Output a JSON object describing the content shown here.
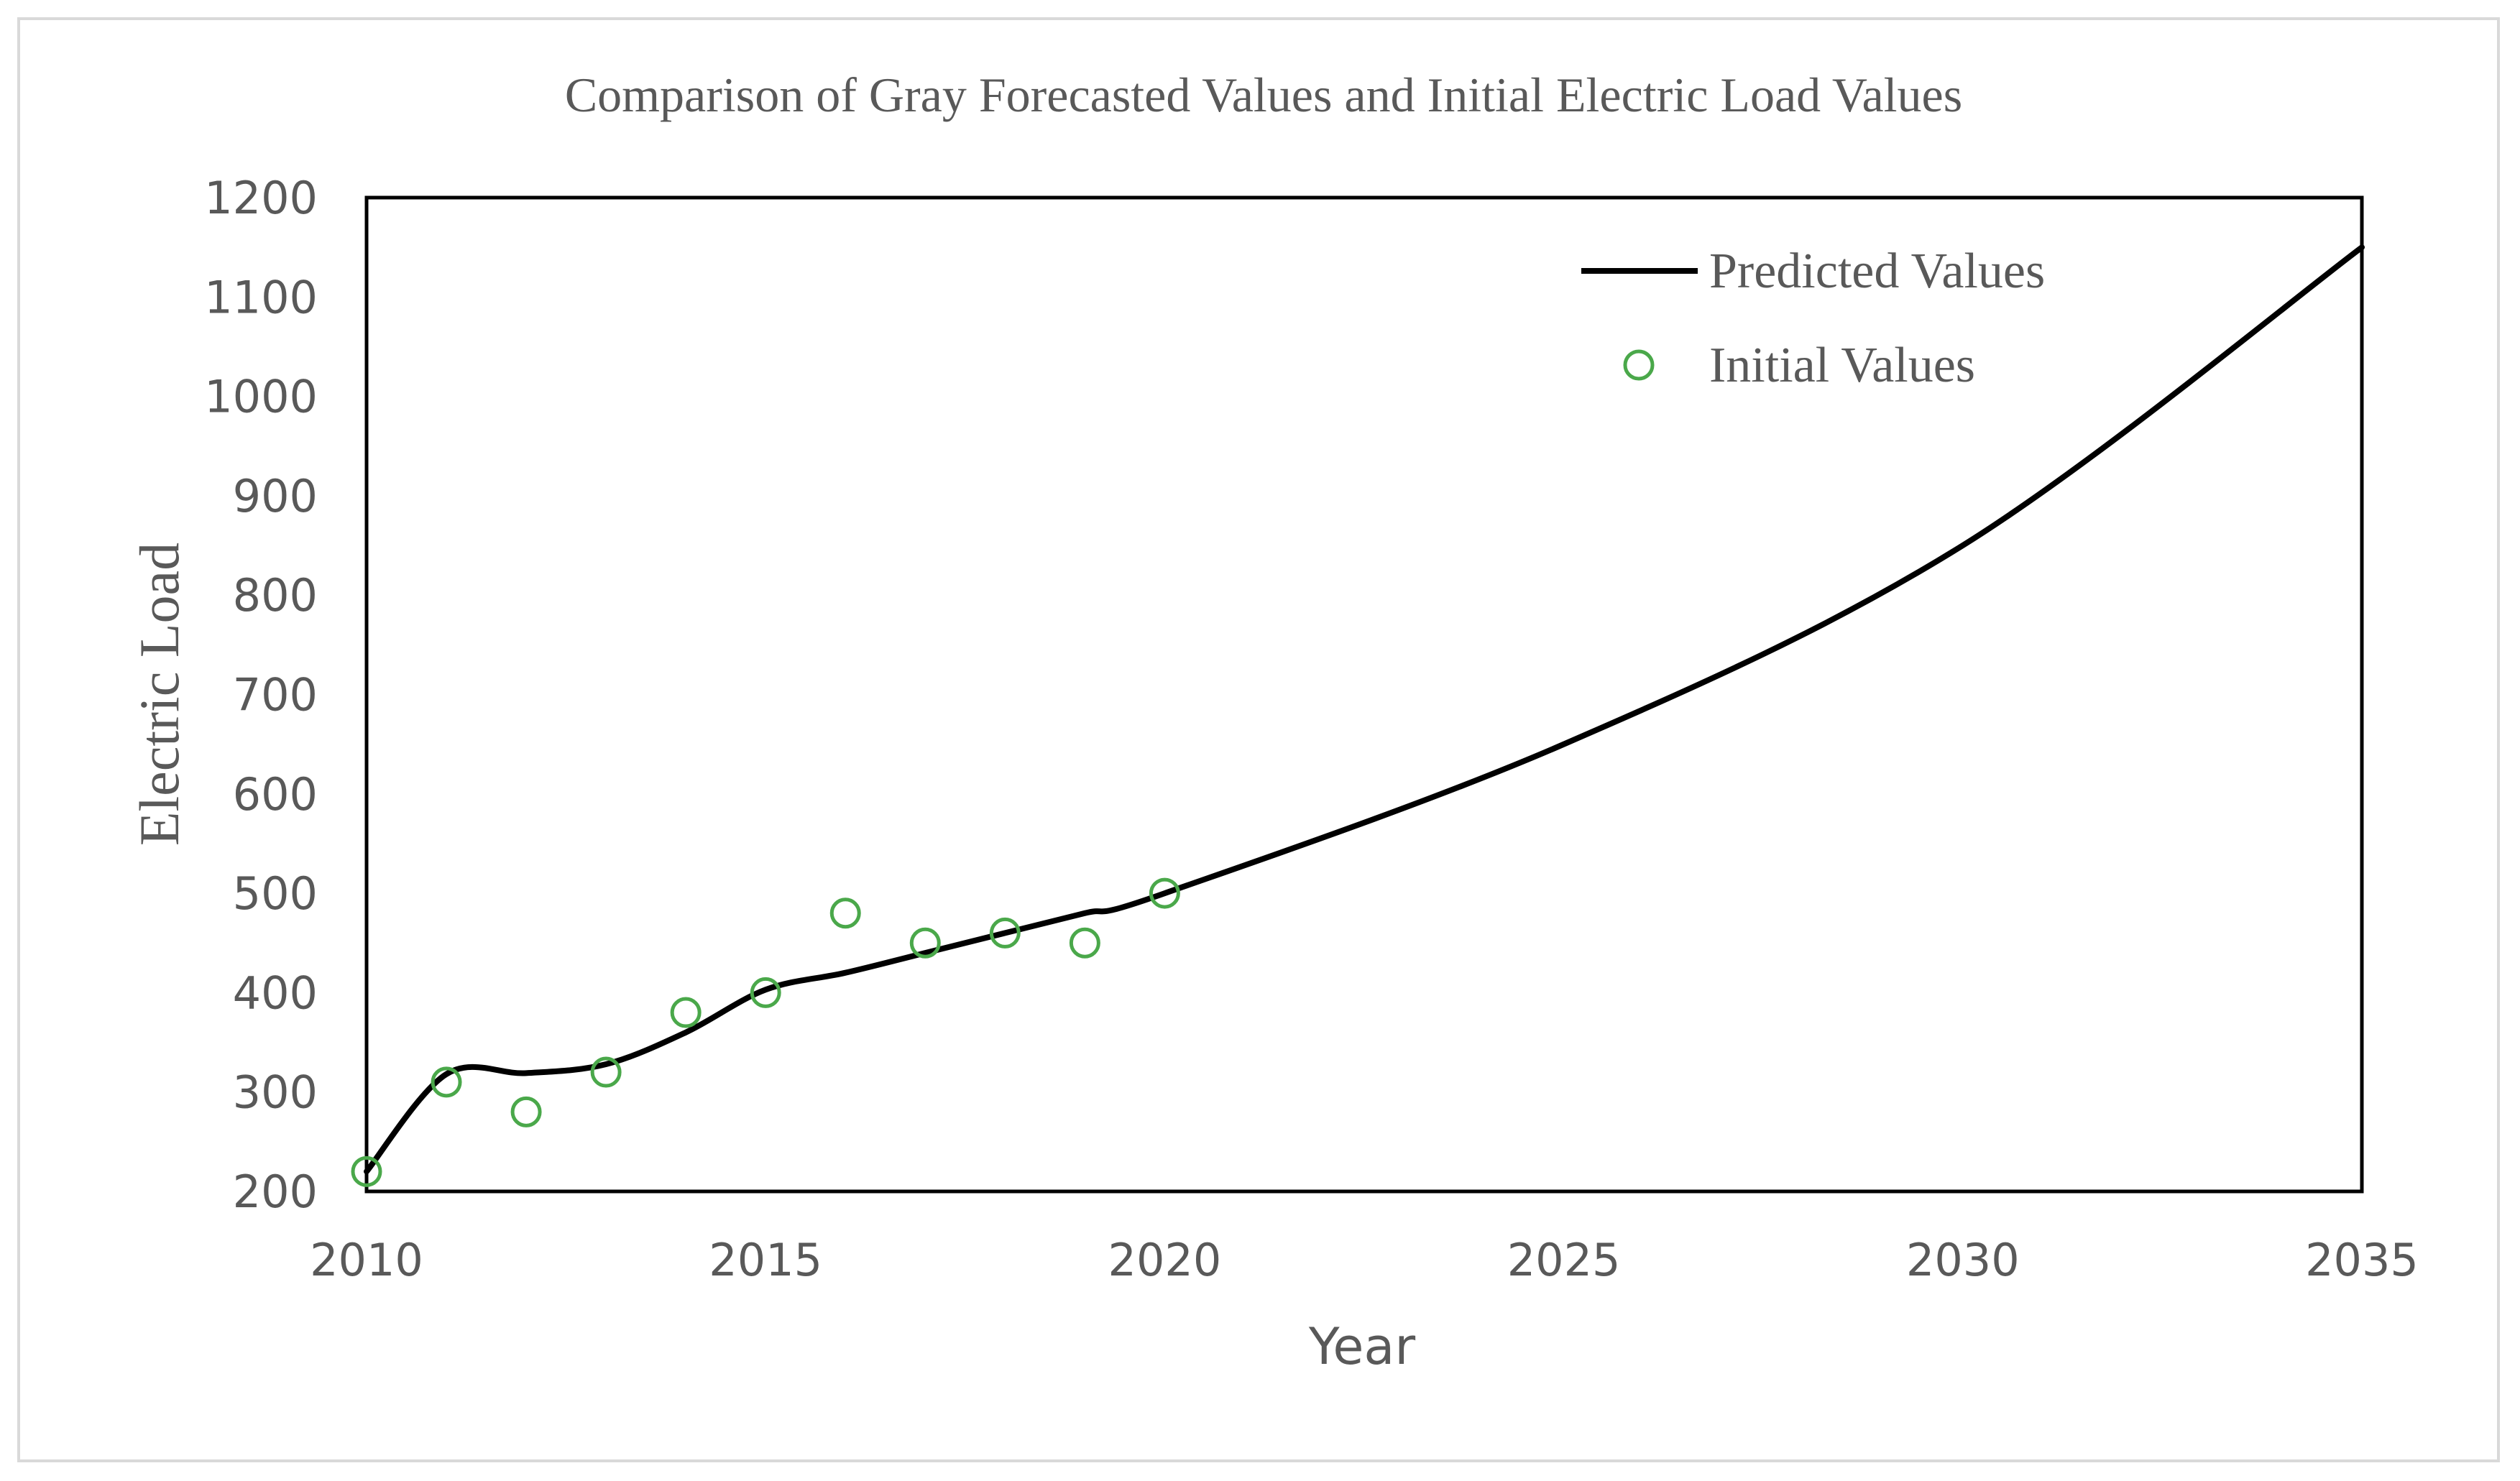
{
  "chart_data": {
    "type": "line",
    "title": "Comparison of Gray Forecasted Values and Initial Electric Load Values",
    "xlabel": "Year",
    "ylabel": "Electric Load",
    "xlim": [
      2010,
      2035
    ],
    "ylim": [
      200,
      1200
    ],
    "xticks": [
      "2010",
      "2015",
      "2020",
      "2025",
      "2030",
      "2035"
    ],
    "yticks": [
      "200",
      "300",
      "400",
      "500",
      "600",
      "700",
      "800",
      "900",
      "1000",
      "1100",
      "1200"
    ],
    "legend_position": "top-right",
    "series": [
      {
        "name": "Predicted Values",
        "kind": "line",
        "color": "#000000",
        "x": [
          2010,
          2011,
          2012,
          2013,
          2014,
          2015,
          2016,
          2017,
          2018,
          2019,
          2020,
          2025,
          2030,
          2035
        ],
        "y": [
          220,
          318,
          319,
          328,
          360,
          403,
          420,
          440,
          460,
          480,
          500,
          650,
          850,
          1150
        ]
      },
      {
        "name": "Initial Values",
        "kind": "scatter",
        "color": "#4aa84a",
        "marker": "open-circle",
        "x": [
          2010,
          2011,
          2012,
          2013,
          2014,
          2015,
          2016,
          2017,
          2018,
          2019,
          2020
        ],
        "y": [
          220,
          310,
          280,
          320,
          380,
          400,
          480,
          450,
          460,
          450,
          500
        ]
      }
    ]
  }
}
